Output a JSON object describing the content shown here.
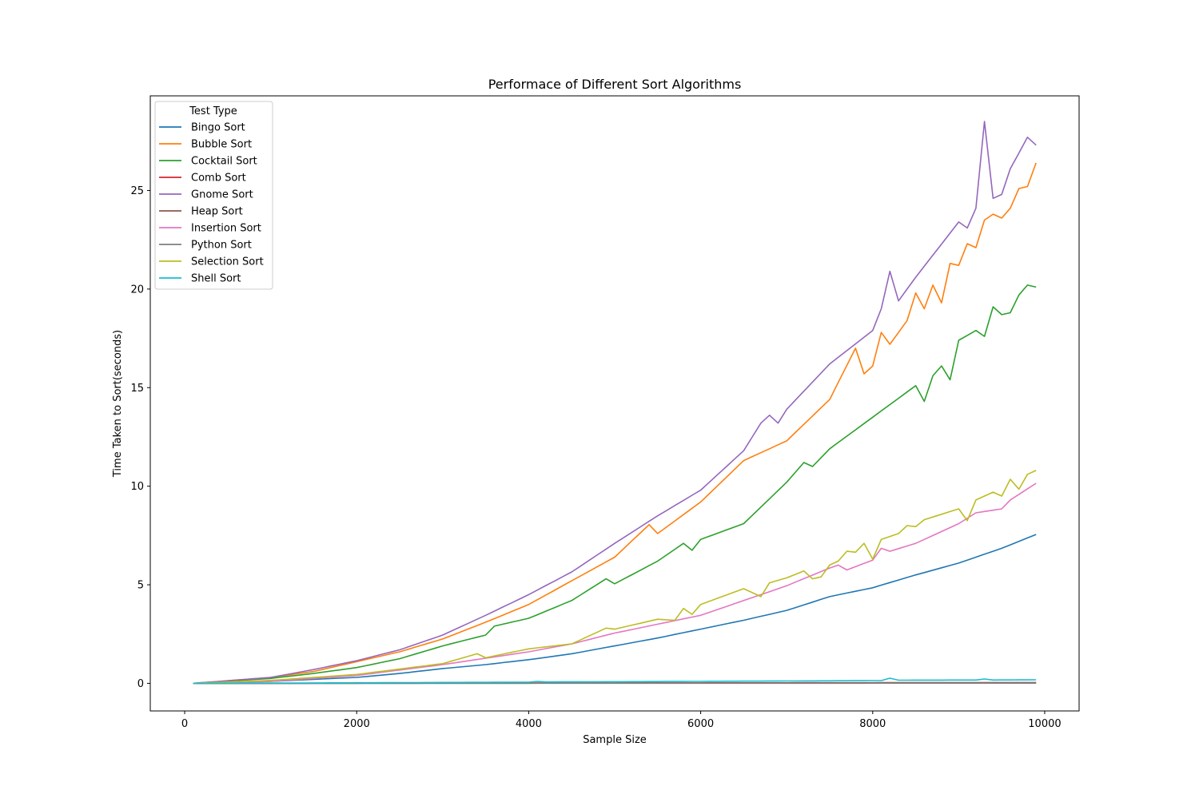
{
  "chart_data": {
    "type": "line",
    "title": "Performace of Different Sort Algorithms",
    "xlabel": "Sample Size",
    "ylabel": "Time Taken to Sort(seconds)",
    "xlim": [
      -400,
      10400
    ],
    "ylim": [
      -1.4,
      29.8
    ],
    "xticks": [
      0,
      2000,
      4000,
      6000,
      8000,
      10000
    ],
    "yticks": [
      0,
      5,
      10,
      15,
      20,
      25
    ],
    "grid": false,
    "legend": {
      "title": "Test Type",
      "placement": "top-left"
    },
    "x": {
      "start": 100,
      "step": 100,
      "count": 99
    },
    "series": [
      {
        "name": "Bingo Sort",
        "color": "#1f77b4",
        "anchors": [
          [
            100,
            0.0
          ],
          [
            1000,
            0.1
          ],
          [
            2000,
            0.3
          ],
          [
            2500,
            0.5
          ],
          [
            3000,
            0.75
          ],
          [
            3500,
            0.95
          ],
          [
            4000,
            1.2
          ],
          [
            4500,
            1.5
          ],
          [
            5000,
            1.9
          ],
          [
            5500,
            2.3
          ],
          [
            6000,
            2.75
          ],
          [
            6500,
            3.2
          ],
          [
            7000,
            3.7
          ],
          [
            7500,
            4.4
          ],
          [
            8000,
            4.85
          ],
          [
            8500,
            5.5
          ],
          [
            9000,
            6.1
          ],
          [
            9500,
            6.85
          ],
          [
            9900,
            7.55
          ]
        ]
      },
      {
        "name": "Bubble Sort",
        "color": "#ff7f0e",
        "anchors": [
          [
            100,
            0.0
          ],
          [
            1000,
            0.3
          ],
          [
            1500,
            0.6
          ],
          [
            2000,
            1.1
          ],
          [
            2500,
            1.6
          ],
          [
            3000,
            2.25
          ],
          [
            3500,
            3.1
          ],
          [
            4000,
            4.0
          ],
          [
            4500,
            5.2
          ],
          [
            5000,
            6.4
          ],
          [
            5400,
            8.05
          ],
          [
            5500,
            7.6
          ],
          [
            6000,
            9.2
          ],
          [
            6500,
            11.3
          ],
          [
            7000,
            12.3
          ],
          [
            7500,
            14.4
          ],
          [
            7800,
            17.0
          ],
          [
            7900,
            15.7
          ],
          [
            8000,
            16.1
          ],
          [
            8100,
            17.8
          ],
          [
            8200,
            17.2
          ],
          [
            8400,
            18.4
          ],
          [
            8500,
            19.8
          ],
          [
            8600,
            19.0
          ],
          [
            8700,
            20.2
          ],
          [
            8800,
            19.3
          ],
          [
            8900,
            21.3
          ],
          [
            9000,
            21.2
          ],
          [
            9100,
            22.3
          ],
          [
            9200,
            22.1
          ],
          [
            9300,
            23.5
          ],
          [
            9400,
            23.8
          ],
          [
            9500,
            23.6
          ],
          [
            9600,
            24.1
          ],
          [
            9700,
            25.1
          ],
          [
            9800,
            25.2
          ],
          [
            9900,
            26.4
          ]
        ]
      },
      {
        "name": "Cocktail Sort",
        "color": "#2ca02c",
        "anchors": [
          [
            100,
            0.0
          ],
          [
            1000,
            0.25
          ],
          [
            1500,
            0.5
          ],
          [
            2000,
            0.8
          ],
          [
            2500,
            1.25
          ],
          [
            3000,
            1.9
          ],
          [
            3500,
            2.45
          ],
          [
            3600,
            2.9
          ],
          [
            4000,
            3.3
          ],
          [
            4500,
            4.2
          ],
          [
            4900,
            5.3
          ],
          [
            5000,
            5.05
          ],
          [
            5500,
            6.2
          ],
          [
            5800,
            7.1
          ],
          [
            5900,
            6.75
          ],
          [
            6000,
            7.3
          ],
          [
            6500,
            8.1
          ],
          [
            7000,
            10.2
          ],
          [
            7200,
            11.2
          ],
          [
            7300,
            11.0
          ],
          [
            7500,
            11.9
          ],
          [
            8000,
            13.5
          ],
          [
            8500,
            15.1
          ],
          [
            8600,
            14.3
          ],
          [
            8700,
            15.6
          ],
          [
            8800,
            16.1
          ],
          [
            8900,
            15.4
          ],
          [
            9000,
            17.4
          ],
          [
            9200,
            17.9
          ],
          [
            9300,
            17.6
          ],
          [
            9400,
            19.1
          ],
          [
            9500,
            18.7
          ],
          [
            9600,
            18.8
          ],
          [
            9700,
            19.7
          ],
          [
            9800,
            20.2
          ],
          [
            9900,
            20.1
          ]
        ]
      },
      {
        "name": "Comb Sort",
        "color": "#d62728",
        "anchors": [
          [
            100,
            0.0
          ],
          [
            5000,
            0.02
          ],
          [
            9900,
            0.04
          ]
        ]
      },
      {
        "name": "Gnome Sort",
        "color": "#9467bd",
        "anchors": [
          [
            100,
            0.0
          ],
          [
            1000,
            0.3
          ],
          [
            1500,
            0.7
          ],
          [
            2000,
            1.15
          ],
          [
            2500,
            1.7
          ],
          [
            3000,
            2.45
          ],
          [
            3500,
            3.45
          ],
          [
            4000,
            4.5
          ],
          [
            4500,
            5.65
          ],
          [
            5000,
            7.1
          ],
          [
            5500,
            8.5
          ],
          [
            6000,
            9.8
          ],
          [
            6500,
            11.8
          ],
          [
            6700,
            13.2
          ],
          [
            6800,
            13.6
          ],
          [
            6900,
            13.2
          ],
          [
            7000,
            13.9
          ],
          [
            7500,
            16.2
          ],
          [
            8000,
            17.9
          ],
          [
            8100,
            19.0
          ],
          [
            8200,
            20.9
          ],
          [
            8300,
            19.4
          ],
          [
            8500,
            20.6
          ],
          [
            9000,
            23.4
          ],
          [
            9100,
            23.1
          ],
          [
            9200,
            24.1
          ],
          [
            9300,
            28.5
          ],
          [
            9400,
            24.6
          ],
          [
            9500,
            24.8
          ],
          [
            9600,
            26.1
          ],
          [
            9800,
            27.7
          ],
          [
            9900,
            27.3
          ]
        ]
      },
      {
        "name": "Heap Sort",
        "color": "#8c564b",
        "anchors": [
          [
            100,
            0.0
          ],
          [
            5000,
            0.015
          ],
          [
            9900,
            0.03
          ]
        ]
      },
      {
        "name": "Insertion Sort",
        "color": "#e377c2",
        "anchors": [
          [
            100,
            0.0
          ],
          [
            1000,
            0.1
          ],
          [
            2000,
            0.4
          ],
          [
            3000,
            0.95
          ],
          [
            4000,
            1.6
          ],
          [
            4500,
            2.0
          ],
          [
            5000,
            2.55
          ],
          [
            5500,
            3.0
          ],
          [
            6000,
            3.45
          ],
          [
            6500,
            4.2
          ],
          [
            7000,
            4.95
          ],
          [
            7500,
            5.85
          ],
          [
            7600,
            6.0
          ],
          [
            7700,
            5.75
          ],
          [
            8000,
            6.25
          ],
          [
            8100,
            6.85
          ],
          [
            8200,
            6.7
          ],
          [
            8500,
            7.1
          ],
          [
            9000,
            8.1
          ],
          [
            9200,
            8.65
          ],
          [
            9500,
            8.85
          ],
          [
            9600,
            9.3
          ],
          [
            9900,
            10.15
          ]
        ]
      },
      {
        "name": "Python Sort",
        "color": "#7f7f7f",
        "anchors": [
          [
            100,
            0.0
          ],
          [
            9900,
            0.01
          ]
        ]
      },
      {
        "name": "Selection Sort",
        "color": "#bcbd22",
        "anchors": [
          [
            100,
            0.0
          ],
          [
            1000,
            0.15
          ],
          [
            2000,
            0.45
          ],
          [
            3000,
            1.0
          ],
          [
            3400,
            1.5
          ],
          [
            3500,
            1.3
          ],
          [
            4000,
            1.75
          ],
          [
            4500,
            2.0
          ],
          [
            4900,
            2.8
          ],
          [
            5000,
            2.75
          ],
          [
            5500,
            3.25
          ],
          [
            5700,
            3.2
          ],
          [
            5800,
            3.8
          ],
          [
            5900,
            3.5
          ],
          [
            6000,
            4.0
          ],
          [
            6500,
            4.8
          ],
          [
            6700,
            4.4
          ],
          [
            6800,
            5.1
          ],
          [
            7000,
            5.35
          ],
          [
            7200,
            5.7
          ],
          [
            7300,
            5.3
          ],
          [
            7400,
            5.4
          ],
          [
            7500,
            6.0
          ],
          [
            7600,
            6.2
          ],
          [
            7700,
            6.7
          ],
          [
            7800,
            6.65
          ],
          [
            7900,
            7.1
          ],
          [
            8000,
            6.3
          ],
          [
            8100,
            7.3
          ],
          [
            8300,
            7.6
          ],
          [
            8400,
            8.0
          ],
          [
            8500,
            7.95
          ],
          [
            8600,
            8.3
          ],
          [
            9000,
            8.85
          ],
          [
            9100,
            8.25
          ],
          [
            9200,
            9.3
          ],
          [
            9400,
            9.7
          ],
          [
            9500,
            9.5
          ],
          [
            9600,
            10.35
          ],
          [
            9700,
            9.85
          ],
          [
            9800,
            10.6
          ],
          [
            9900,
            10.8
          ]
        ]
      },
      {
        "name": "Shell Sort",
        "color": "#17becf",
        "anchors": [
          [
            100,
            0.0
          ],
          [
            4000,
            0.06
          ],
          [
            4100,
            0.1
          ],
          [
            4200,
            0.07
          ],
          [
            6000,
            0.1
          ],
          [
            8100,
            0.14
          ],
          [
            8200,
            0.26
          ],
          [
            8300,
            0.16
          ],
          [
            9200,
            0.17
          ],
          [
            9300,
            0.22
          ],
          [
            9400,
            0.17
          ],
          [
            9900,
            0.18
          ]
        ]
      }
    ]
  }
}
